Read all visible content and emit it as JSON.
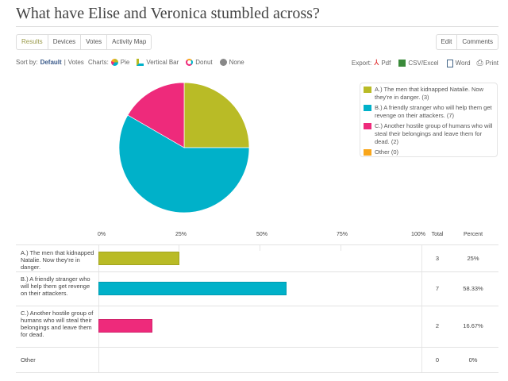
{
  "title": "What have Elise and Veronica stumbled across?",
  "tabs": [
    {
      "label": "Results",
      "active": true
    },
    {
      "label": "Devices"
    },
    {
      "label": "Votes"
    },
    {
      "label": "Activity Map"
    }
  ],
  "actions": [
    {
      "label": "Edit"
    },
    {
      "label": "Comments"
    }
  ],
  "sort": {
    "label": "Sort by:",
    "default": "Default",
    "sep": "|",
    "votes": "Votes"
  },
  "charts": {
    "label": "Charts:",
    "options": [
      {
        "label": "Pie",
        "icon": "pie-icon"
      },
      {
        "label": "Vertical Bar",
        "icon": "bar-icon"
      },
      {
        "label": "Donut",
        "icon": "donut-icon"
      },
      {
        "label": "None",
        "icon": "none-icon"
      }
    ]
  },
  "export": {
    "label": "Export:",
    "options": [
      {
        "label": "Pdf",
        "icon": "pdf-icon"
      },
      {
        "label": "CSV/Excel",
        "icon": "excel-icon"
      },
      {
        "label": "Word",
        "icon": "word-icon"
      },
      {
        "label": "Print",
        "icon": "print-icon"
      }
    ]
  },
  "legend": [
    "A.) The men that kidnapped Natalie. Now they're in danger. (3)",
    "B.) A friendly stranger who will help them get revenge on their attackers. (7)",
    "C.) Another hostile group of humans who will steal their belongings and leave them for dead. (2)",
    "Other (0)"
  ],
  "chart_data": {
    "type": "bar",
    "categories": [
      "A.) The men that kidnapped Natalie. Now they're in danger.",
      "B.) A friendly stranger who will help them get revenge on their attackers.",
      "C.) Another hostile group of humans who will steal their belongings and leave them for dead.",
      "Other"
    ],
    "totals": [
      3,
      7,
      2,
      0
    ],
    "percent_labels": [
      "25%",
      "58.33%",
      "16.67%",
      "0%"
    ],
    "values": [
      25,
      58.33,
      16.67,
      0
    ],
    "colors": [
      "#b9bb26",
      "#00b1c9",
      "#ee2a7b",
      "#f9a61a"
    ],
    "xticks": [
      "0%",
      "25%",
      "50%",
      "75%",
      "100%"
    ],
    "xlim": [
      0,
      100
    ],
    "headers": {
      "total": "Total",
      "percent": "Percent"
    }
  }
}
